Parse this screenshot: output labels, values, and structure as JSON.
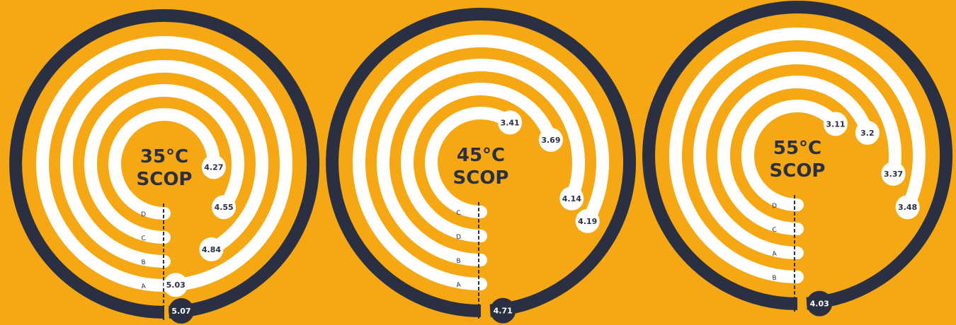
{
  "colors": {
    "background": "#F6A814",
    "outer_ring": "#2A3042",
    "inner_rings": "#FFFFFF",
    "label_bubble": "#FFFFFF",
    "label_text": "#2A3042",
    "outer_bubble": "#2A3042",
    "outer_bubble_text": "#FFFFFF"
  },
  "chart_data": [
    {
      "type": "radial-bar",
      "title_line1": "35°C",
      "title_line2": "SCOP",
      "outer_value": "5.07",
      "outer_sweep": 0.995,
      "rings": [
        {
          "label": "A",
          "value": "5.03",
          "sweep": 0.985
        },
        {
          "label": "B",
          "value": "4.84",
          "sweep": 0.92
        },
        {
          "label": "C",
          "value": "4.55",
          "sweep": 0.85
        },
        {
          "label": "D",
          "value": "4.27",
          "sweep": 0.76
        }
      ]
    },
    {
      "type": "radial-bar",
      "title_line1": "45°C",
      "title_line2": "SCOP",
      "outer_value": "4.71",
      "outer_sweep": 0.99,
      "rings": [
        {
          "label": "A",
          "value": "4.19",
          "sweep": 0.83
        },
        {
          "label": "B",
          "value": "4.14",
          "sweep": 0.81
        },
        {
          "label": "D",
          "value": "3.69",
          "sweep": 0.7
        },
        {
          "label": "C",
          "value": "3.41",
          "sweep": 0.6
        }
      ]
    },
    {
      "type": "radial-bar",
      "title_line1": "55°C",
      "title_line2": "SCOP",
      "outer_value": "4.03",
      "outer_sweep": 0.99,
      "rings": [
        {
          "label": "B",
          "value": "3.48",
          "sweep": 0.82
        },
        {
          "label": "A",
          "value": "3.37",
          "sweep": 0.78
        },
        {
          "label": "C",
          "value": "3.2",
          "sweep": 0.7
        },
        {
          "label": "D",
          "value": "3.11",
          "sweep": 0.64
        }
      ]
    }
  ]
}
